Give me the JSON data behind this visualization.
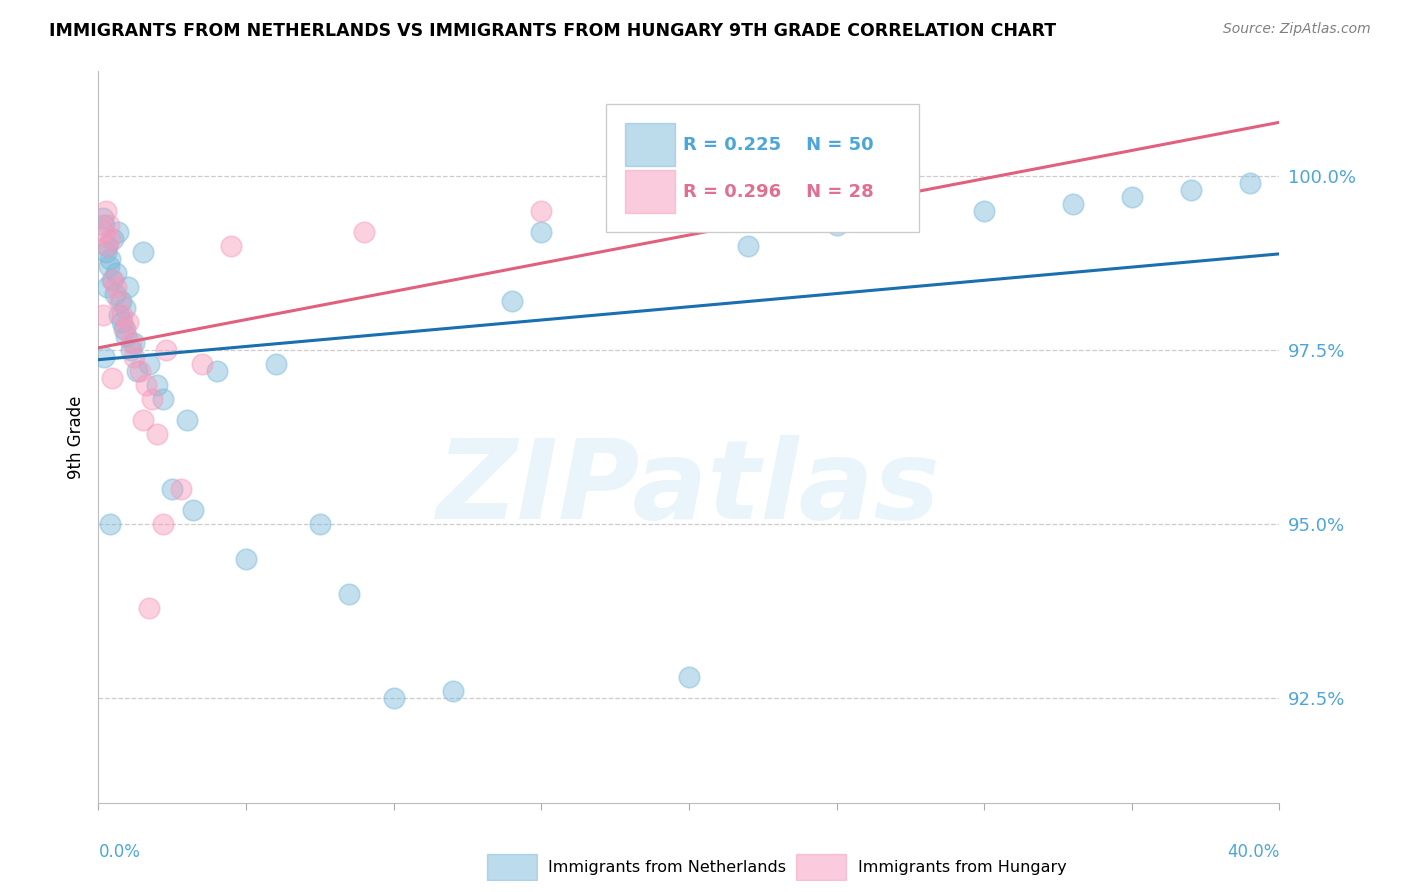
{
  "title": "IMMIGRANTS FROM NETHERLANDS VS IMMIGRANTS FROM HUNGARY 9TH GRADE CORRELATION CHART",
  "source": "Source: ZipAtlas.com",
  "ylabel": "9th Grade",
  "yticks": [
    92.5,
    95.0,
    97.5,
    100.0
  ],
  "ytick_labels": [
    "92.5%",
    "95.0%",
    "97.5%",
    "100.0%"
  ],
  "xlim": [
    0.0,
    40.0
  ],
  "ylim": [
    91.0,
    101.5
  ],
  "watermark": "ZIPatlas",
  "legend_blue_r": "R = 0.225",
  "legend_blue_n": "N = 50",
  "legend_pink_r": "R = 0.296",
  "legend_pink_n": "N = 28",
  "blue_color": "#7ab8d9",
  "pink_color": "#f799bb",
  "trendline_blue_color": "#1a6faf",
  "trendline_pink_color": "#e0607e",
  "legend_text_blue": "#4da6d9",
  "legend_text_pink": "#e07090",
  "right_tick_color": "#4da6d9",
  "bottom_label_color": "#4da6d9",
  "blue_scatter_x": [
    0.15,
    0.2,
    0.25,
    0.3,
    0.35,
    0.4,
    0.45,
    0.5,
    0.55,
    0.6,
    0.65,
    0.7,
    0.75,
    0.8,
    0.85,
    0.9,
    0.95,
    1.0,
    1.1,
    1.2,
    1.3,
    1.5,
    1.7,
    2.0,
    2.2,
    2.5,
    3.0,
    3.2,
    4.0,
    5.0,
    6.0,
    7.5,
    8.5,
    10.0,
    12.0,
    14.0,
    15.0,
    18.0,
    20.0,
    22.0,
    25.0,
    27.0,
    30.0,
    33.0,
    35.0,
    37.0,
    39.0,
    0.18,
    0.28,
    0.38
  ],
  "blue_scatter_y": [
    99.4,
    99.3,
    98.9,
    99.0,
    98.7,
    98.8,
    98.5,
    99.1,
    98.3,
    98.6,
    99.2,
    98.0,
    98.2,
    97.9,
    97.8,
    98.1,
    97.7,
    98.4,
    97.5,
    97.6,
    97.2,
    98.9,
    97.3,
    97.0,
    96.8,
    95.5,
    96.5,
    95.2,
    97.2,
    94.5,
    97.3,
    95.0,
    94.0,
    92.5,
    92.6,
    98.2,
    99.2,
    99.5,
    92.8,
    99.0,
    99.3,
    99.4,
    99.5,
    99.6,
    99.7,
    99.8,
    99.9,
    97.4,
    98.4,
    95.0
  ],
  "pink_scatter_x": [
    0.2,
    0.25,
    0.3,
    0.35,
    0.4,
    0.5,
    0.6,
    0.7,
    0.8,
    0.9,
    1.0,
    1.1,
    1.2,
    1.4,
    1.6,
    1.8,
    2.0,
    2.3,
    2.8,
    3.5,
    2.2,
    0.15,
    1.5,
    4.5,
    1.7,
    0.45,
    9.0,
    15.0
  ],
  "pink_scatter_y": [
    99.2,
    99.5,
    99.0,
    99.3,
    99.1,
    98.5,
    98.4,
    98.2,
    98.0,
    97.8,
    97.9,
    97.6,
    97.4,
    97.2,
    97.0,
    96.8,
    96.3,
    97.5,
    95.5,
    97.3,
    95.0,
    98.0,
    96.5,
    99.0,
    93.8,
    97.1,
    99.2,
    99.5
  ]
}
